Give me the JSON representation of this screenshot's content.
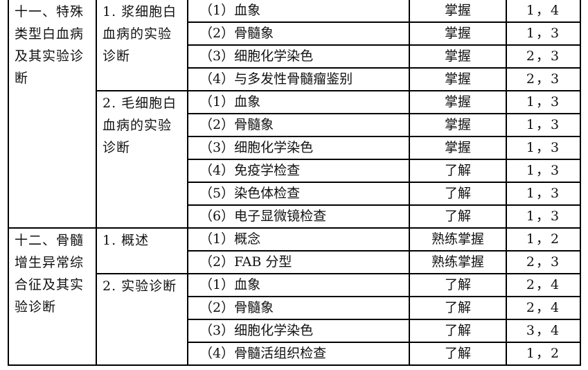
{
  "sections": [
    {
      "title": "十一、特殊类型白血病及其实验诊断",
      "groups": [
        {
          "title": "1. 浆细胞白血病的实验诊断",
          "items": [
            {
              "content": "（1）血象",
              "level": "掌握",
              "ref": "1，4"
            },
            {
              "content": "（2）骨髓象",
              "level": "掌握",
              "ref": "1，3"
            },
            {
              "content": "（3）细胞化学染色",
              "level": "掌握",
              "ref": "2，3"
            },
            {
              "content": "（4）与多发性骨髓瘤鉴别",
              "level": "掌握",
              "ref": "2，3"
            }
          ]
        },
        {
          "title": "2. 毛细胞白血病的实验诊断",
          "items": [
            {
              "content": "（1）血象",
              "level": "掌握",
              "ref": "1，3"
            },
            {
              "content": "（2）骨髓象",
              "level": "掌握",
              "ref": "1，3"
            },
            {
              "content": "（3）细胞化学染色",
              "level": "掌握",
              "ref": "1，3"
            },
            {
              "content": "（4）免疫学检查",
              "level": "了解",
              "ref": "1，3"
            },
            {
              "content": "（5）染色体检查",
              "level": "了解",
              "ref": "1，3"
            },
            {
              "content": "（6）电子显微镜检查",
              "level": "了解",
              "ref": "1，3"
            }
          ]
        }
      ]
    },
    {
      "title": "十二、骨髓增生异常综合征及其实验诊断",
      "groups": [
        {
          "title": "1. 概述",
          "items": [
            {
              "content": "（1）概念",
              "level": "熟练掌握",
              "ref": "1，2"
            },
            {
              "content": "（2）FAB 分型",
              "level": "熟练掌握",
              "ref": "2，3"
            }
          ]
        },
        {
          "title": "2. 实验诊断",
          "items": [
            {
              "content": "（1）血象",
              "level": "了解",
              "ref": "2，4"
            },
            {
              "content": "（2）骨髓象",
              "level": "了解",
              "ref": "2，4"
            },
            {
              "content": "（3）细胞化学染色",
              "level": "了解",
              "ref": "3，4"
            },
            {
              "content": "（4）骨髓活组织检查",
              "level": "了解",
              "ref": "1，2"
            }
          ]
        }
      ]
    }
  ]
}
